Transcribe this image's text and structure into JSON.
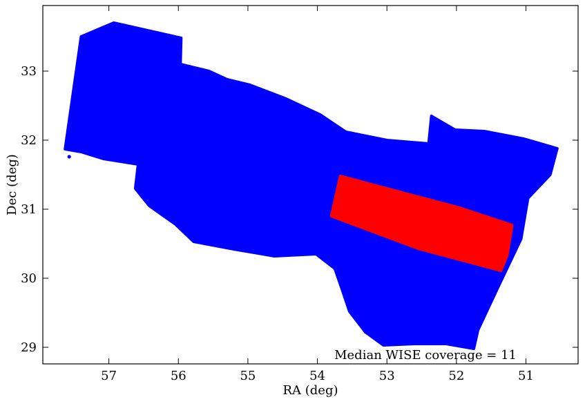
{
  "chart_data": {
    "type": "scatter",
    "title": "",
    "xlabel": "RA (deg)",
    "ylabel": "Dec (deg)",
    "xlim": [
      57.95,
      50.25
    ],
    "ylim": [
      28.76,
      33.95
    ],
    "x_inverted": true,
    "xticks": [
      57,
      56,
      55,
      54,
      53,
      52,
      51
    ],
    "yticks": [
      29,
      30,
      31,
      32,
      33
    ],
    "grid": false,
    "legend": "none",
    "annotation": "Median WISE coverage = 11",
    "series": [
      {
        "color": "#0000ff",
        "regions": [
          [
            [
              57.4,
              33.5
            ],
            [
              56.93,
              33.7
            ],
            [
              56.4,
              33.58
            ],
            [
              55.96,
              33.48
            ],
            [
              55.97,
              33.1
            ],
            [
              55.56,
              33.0
            ],
            [
              55.3,
              32.88
            ],
            [
              54.97,
              32.8
            ],
            [
              54.45,
              32.6
            ],
            [
              53.96,
              32.37
            ],
            [
              53.59,
              32.12
            ],
            [
              53.0,
              32.0
            ],
            [
              52.4,
              31.95
            ],
            [
              52.36,
              32.35
            ],
            [
              52.02,
              32.15
            ],
            [
              51.6,
              32.13
            ],
            [
              51.03,
              32.02
            ],
            [
              50.55,
              31.88
            ],
            [
              50.65,
              31.5
            ],
            [
              50.97,
              31.16
            ],
            [
              51.07,
              30.57
            ],
            [
              51.41,
              29.85
            ],
            [
              51.69,
              29.25
            ],
            [
              51.75,
              28.98
            ],
            [
              52.15,
              29.05
            ],
            [
              52.6,
              29.05
            ],
            [
              53.05,
              29.03
            ],
            [
              53.31,
              29.22
            ],
            [
              53.54,
              29.52
            ],
            [
              53.65,
              29.85
            ],
            [
              53.75,
              30.14
            ],
            [
              54.02,
              30.35
            ],
            [
              54.62,
              30.32
            ],
            [
              55.2,
              30.42
            ],
            [
              55.78,
              30.53
            ],
            [
              56.04,
              30.78
            ],
            [
              56.42,
              31.05
            ],
            [
              56.62,
              31.3
            ],
            [
              56.58,
              31.65
            ],
            [
              57.08,
              31.73
            ],
            [
              57.4,
              31.83
            ],
            [
              57.63,
              31.87
            ]
          ]
        ],
        "points": [
          [
            57.57,
            31.76
          ],
          [
            56.01,
            30.88
          ],
          [
            53.42,
            30.0
          ]
        ]
      },
      {
        "color": "#ff0000",
        "regions": [
          [
            [
              53.67,
              31.48
            ],
            [
              52.85,
              31.26
            ],
            [
              51.95,
              31.02
            ],
            [
              51.2,
              30.77
            ],
            [
              51.21,
              30.7
            ],
            [
              51.27,
              30.33
            ],
            [
              51.36,
              30.11
            ],
            [
              52.55,
              30.43
            ],
            [
              53.8,
              30.9
            ]
          ]
        ]
      }
    ]
  }
}
